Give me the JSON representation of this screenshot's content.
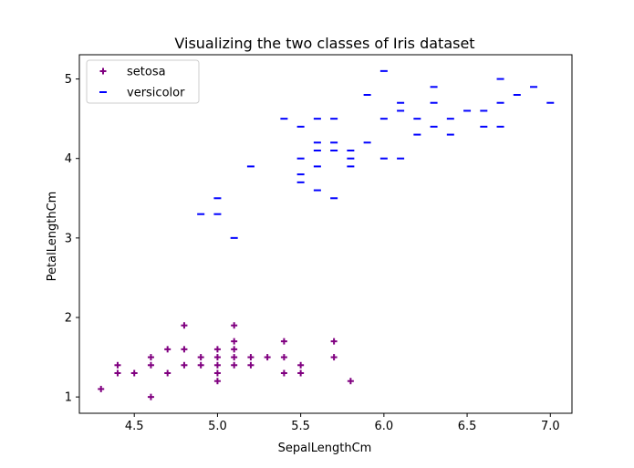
{
  "chart_data": {
    "type": "scatter",
    "title": "Visualizing the two classes of Iris dataset",
    "xlabel": "SepalLengthCm",
    "ylabel": "PetalLengthCm",
    "xlim": [
      4.17,
      7.13
    ],
    "ylim": [
      0.795,
      5.305
    ],
    "x_ticks": [
      4.5,
      5.0,
      5.5,
      6.0,
      6.5,
      7.0
    ],
    "x_tick_labels": [
      "4.5",
      "5.0",
      "5.5",
      "6.0",
      "6.5",
      "7.0"
    ],
    "y_ticks": [
      1,
      2,
      3,
      4,
      5
    ],
    "y_tick_labels": [
      "1",
      "2",
      "3",
      "4",
      "5"
    ],
    "grid": false,
    "legend_position": "top-left",
    "series": [
      {
        "name": "setosa",
        "marker": "plus",
        "color": "#800080",
        "points": [
          [
            4.3,
            1.1
          ],
          [
            4.4,
            1.4
          ],
          [
            4.4,
            1.3
          ],
          [
            4.5,
            1.3
          ],
          [
            4.6,
            1.5
          ],
          [
            4.6,
            1.4
          ],
          [
            4.6,
            1.0
          ],
          [
            4.7,
            1.6
          ],
          [
            4.7,
            1.3
          ],
          [
            4.8,
            1.9
          ],
          [
            4.8,
            1.6
          ],
          [
            4.8,
            1.4
          ],
          [
            4.9,
            1.5
          ],
          [
            4.9,
            1.4
          ],
          [
            5.0,
            1.6
          ],
          [
            5.0,
            1.5
          ],
          [
            5.0,
            1.4
          ],
          [
            5.0,
            1.3
          ],
          [
            5.0,
            1.2
          ],
          [
            5.1,
            1.9
          ],
          [
            5.1,
            1.7
          ],
          [
            5.1,
            1.6
          ],
          [
            5.1,
            1.5
          ],
          [
            5.1,
            1.4
          ],
          [
            5.2,
            1.5
          ],
          [
            5.2,
            1.4
          ],
          [
            5.3,
            1.5
          ],
          [
            5.4,
            1.7
          ],
          [
            5.4,
            1.5
          ],
          [
            5.4,
            1.3
          ],
          [
            5.5,
            1.4
          ],
          [
            5.5,
            1.3
          ],
          [
            5.7,
            1.7
          ],
          [
            5.7,
            1.5
          ],
          [
            5.8,
            1.2
          ]
        ]
      },
      {
        "name": "versicolor",
        "marker": "hline",
        "color": "#0000ff",
        "points": [
          [
            4.9,
            3.3
          ],
          [
            5.0,
            3.5
          ],
          [
            5.0,
            3.3
          ],
          [
            5.1,
            3.0
          ],
          [
            5.2,
            3.9
          ],
          [
            5.4,
            4.5
          ],
          [
            5.5,
            4.4
          ],
          [
            5.5,
            4.0
          ],
          [
            5.5,
            3.8
          ],
          [
            5.5,
            3.7
          ],
          [
            5.6,
            4.5
          ],
          [
            5.6,
            4.2
          ],
          [
            5.6,
            4.1
          ],
          [
            5.6,
            3.9
          ],
          [
            5.6,
            3.6
          ],
          [
            5.7,
            4.5
          ],
          [
            5.7,
            4.2
          ],
          [
            5.7,
            4.1
          ],
          [
            5.7,
            3.5
          ],
          [
            5.8,
            4.1
          ],
          [
            5.8,
            4.0
          ],
          [
            5.8,
            3.9
          ],
          [
            5.9,
            4.8
          ],
          [
            5.9,
            4.2
          ],
          [
            6.0,
            5.1
          ],
          [
            6.0,
            4.5
          ],
          [
            6.0,
            4.0
          ],
          [
            6.1,
            4.7
          ],
          [
            6.1,
            4.6
          ],
          [
            6.1,
            4.0
          ],
          [
            6.2,
            4.5
          ],
          [
            6.2,
            4.3
          ],
          [
            6.3,
            4.9
          ],
          [
            6.3,
            4.7
          ],
          [
            6.3,
            4.4
          ],
          [
            6.4,
            4.5
          ],
          [
            6.4,
            4.3
          ],
          [
            6.5,
            4.6
          ],
          [
            6.6,
            4.6
          ],
          [
            6.6,
            4.4
          ],
          [
            6.7,
            5.0
          ],
          [
            6.7,
            4.7
          ],
          [
            6.7,
            4.4
          ],
          [
            6.8,
            4.8
          ],
          [
            6.9,
            4.9
          ],
          [
            7.0,
            4.7
          ]
        ]
      }
    ]
  }
}
